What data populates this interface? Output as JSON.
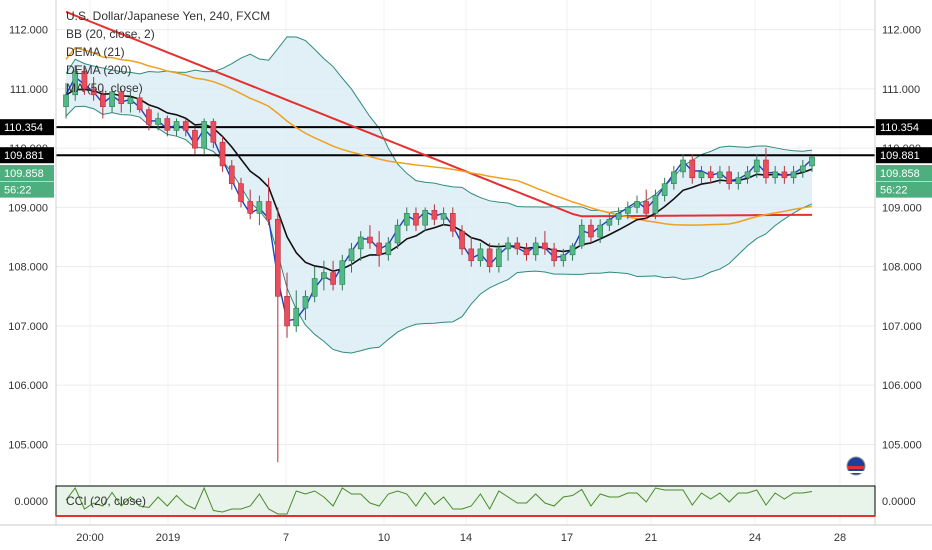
{
  "chart_data": {
    "type": "candlestick",
    "title": "U.S. Dollar/Japanese Yen, 240, FXCM",
    "indicators": [
      {
        "label": "BB (20, close, 2)",
        "color": "#2e8b7a"
      },
      {
        "label": "DEMA (21)",
        "color": "#1f3fbf"
      },
      {
        "label": "DEMA (200)",
        "color": "#e53030"
      },
      {
        "label": "MA (50, close)",
        "color": "#f0a020"
      }
    ],
    "x_ticks": [
      "20:00",
      "2019",
      "7",
      "10",
      "14",
      "17",
      "21",
      "24",
      "28"
    ],
    "y_ticks": [
      "112.000",
      "111.000",
      "110.000",
      "109.000",
      "108.000",
      "107.000",
      "106.000",
      "105.000"
    ],
    "ylim": [
      104.4,
      112.5
    ],
    "price_tags": [
      {
        "label": "110.354",
        "color": "#000000"
      },
      {
        "label": "109.881",
        "color": "#000000"
      },
      {
        "label": "109.858",
        "color": "#4caf7d"
      },
      {
        "label": "56:22",
        "color": "#4caf7d"
      }
    ],
    "horizontal_levels": [
      110.354,
      109.881
    ],
    "candles": [
      [
        0,
        110.7,
        111.1,
        110.5,
        110.9
      ],
      [
        1,
        110.9,
        111.4,
        110.8,
        111.3
      ],
      [
        2,
        111.3,
        111.35,
        110.9,
        111.0
      ],
      [
        3,
        111.0,
        111.2,
        110.8,
        110.9
      ],
      [
        4,
        110.9,
        111.0,
        110.5,
        110.7
      ],
      [
        5,
        110.7,
        111.0,
        110.6,
        110.95
      ],
      [
        6,
        110.95,
        111.0,
        110.6,
        110.75
      ],
      [
        7,
        110.75,
        110.95,
        110.6,
        110.85
      ],
      [
        8,
        110.85,
        110.9,
        110.6,
        110.65
      ],
      [
        9,
        110.65,
        110.7,
        110.3,
        110.4
      ],
      [
        10,
        110.4,
        110.6,
        110.3,
        110.5
      ],
      [
        11,
        110.5,
        110.55,
        110.2,
        110.3
      ],
      [
        12,
        110.3,
        110.5,
        110.2,
        110.45
      ],
      [
        13,
        110.45,
        110.5,
        110.2,
        110.3
      ],
      [
        14,
        110.3,
        110.35,
        109.9,
        110.0
      ],
      [
        15,
        110.0,
        110.5,
        109.9,
        110.45
      ],
      [
        16,
        110.45,
        110.5,
        110.0,
        110.1
      ],
      [
        17,
        110.1,
        110.2,
        109.6,
        109.7
      ],
      [
        18,
        109.7,
        109.8,
        109.3,
        109.4
      ],
      [
        19,
        109.4,
        109.5,
        109.0,
        109.1
      ],
      [
        20,
        109.1,
        109.3,
        108.8,
        108.9
      ],
      [
        21,
        108.9,
        109.2,
        108.7,
        109.1
      ],
      [
        22,
        109.1,
        109.5,
        108.7,
        108.8
      ],
      [
        23,
        108.8,
        109.0,
        104.7,
        107.5
      ],
      [
        24,
        107.5,
        107.9,
        106.8,
        107.0
      ],
      [
        25,
        107.0,
        107.6,
        106.9,
        107.3
      ],
      [
        26,
        107.3,
        107.6,
        107.1,
        107.5
      ],
      [
        27,
        107.5,
        108.0,
        107.4,
        107.8
      ],
      [
        28,
        107.8,
        108.1,
        107.6,
        107.9
      ],
      [
        29,
        107.9,
        108.1,
        107.6,
        107.7
      ],
      [
        30,
        107.7,
        108.2,
        107.6,
        108.1
      ],
      [
        31,
        108.1,
        108.4,
        107.9,
        108.3
      ],
      [
        32,
        108.3,
        108.6,
        108.1,
        108.5
      ],
      [
        33,
        108.5,
        108.7,
        108.3,
        108.4
      ],
      [
        34,
        108.4,
        108.6,
        108.0,
        108.2
      ],
      [
        35,
        108.2,
        108.5,
        108.1,
        108.4
      ],
      [
        36,
        108.4,
        108.8,
        108.3,
        108.7
      ],
      [
        37,
        108.7,
        109.0,
        108.6,
        108.9
      ],
      [
        38,
        108.9,
        109.0,
        108.6,
        108.7
      ],
      [
        39,
        108.7,
        109.0,
        108.6,
        108.95
      ],
      [
        40,
        108.95,
        109.05,
        108.7,
        108.8
      ],
      [
        41,
        108.8,
        109.0,
        108.7,
        108.9
      ],
      [
        42,
        108.9,
        109.0,
        108.5,
        108.6
      ],
      [
        43,
        108.6,
        108.7,
        108.2,
        108.3
      ],
      [
        44,
        108.3,
        108.5,
        108.0,
        108.1
      ],
      [
        45,
        108.1,
        108.4,
        108.0,
        108.3
      ],
      [
        46,
        108.3,
        108.4,
        107.9,
        108.0
      ],
      [
        47,
        108.0,
        108.4,
        107.9,
        108.3
      ],
      [
        48,
        108.3,
        108.5,
        108.1,
        108.4
      ],
      [
        49,
        108.4,
        108.5,
        108.2,
        108.3
      ],
      [
        50,
        108.3,
        108.4,
        108.1,
        108.2
      ],
      [
        51,
        108.2,
        108.5,
        108.1,
        108.4
      ],
      [
        52,
        108.4,
        108.6,
        108.2,
        108.3
      ],
      [
        53,
        108.3,
        108.4,
        108.0,
        108.1
      ],
      [
        54,
        108.1,
        108.3,
        108.0,
        108.2
      ],
      [
        55,
        108.2,
        108.4,
        108.1,
        108.35
      ],
      [
        56,
        108.35,
        108.8,
        108.3,
        108.7
      ],
      [
        57,
        108.7,
        108.8,
        108.4,
        108.5
      ],
      [
        58,
        108.5,
        108.8,
        108.4,
        108.7
      ],
      [
        59,
        108.7,
        108.9,
        108.6,
        108.8
      ],
      [
        60,
        108.8,
        109.0,
        108.7,
        108.9
      ],
      [
        61,
        108.9,
        109.1,
        108.8,
        109.0
      ],
      [
        62,
        109.0,
        109.2,
        108.9,
        109.1
      ],
      [
        63,
        109.1,
        109.3,
        108.8,
        108.9
      ],
      [
        64,
        108.9,
        109.3,
        108.8,
        109.2
      ],
      [
        65,
        109.2,
        109.5,
        109.1,
        109.4
      ],
      [
        66,
        109.4,
        109.7,
        109.3,
        109.6
      ],
      [
        67,
        109.6,
        109.9,
        109.5,
        109.8
      ],
      [
        68,
        109.8,
        109.9,
        109.4,
        109.5
      ],
      [
        69,
        109.5,
        109.7,
        109.4,
        109.6
      ],
      [
        70,
        109.6,
        109.7,
        109.4,
        109.5
      ],
      [
        71,
        109.5,
        109.7,
        109.4,
        109.6
      ],
      [
        72,
        109.6,
        109.7,
        109.3,
        109.4
      ],
      [
        73,
        109.4,
        109.6,
        109.3,
        109.5
      ],
      [
        74,
        109.5,
        109.7,
        109.4,
        109.6
      ],
      [
        75,
        109.6,
        109.9,
        109.5,
        109.8
      ],
      [
        76,
        109.8,
        110.0,
        109.4,
        109.5
      ],
      [
        77,
        109.5,
        109.7,
        109.4,
        109.6
      ],
      [
        78,
        109.6,
        109.7,
        109.4,
        109.5
      ],
      [
        79,
        109.5,
        109.7,
        109.4,
        109.6
      ],
      [
        80,
        109.6,
        109.8,
        109.5,
        109.7
      ],
      [
        81,
        109.7,
        109.86,
        109.6,
        109.85
      ]
    ],
    "cci_label": "CCI (20, close)",
    "cci_ticks": [
      "0.0000"
    ]
  }
}
